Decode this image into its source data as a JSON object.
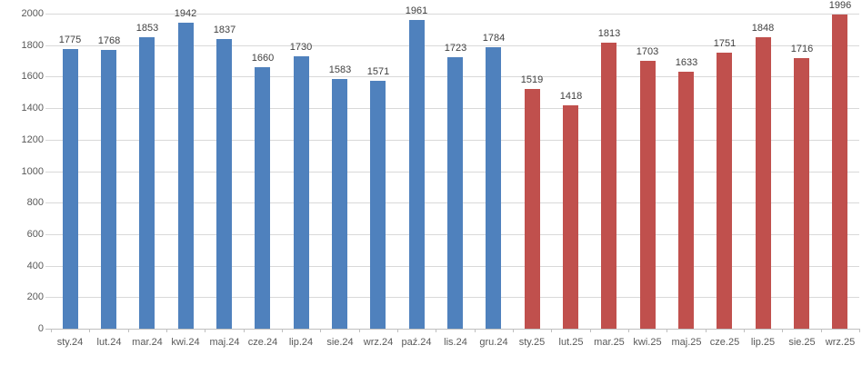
{
  "chart_data": {
    "type": "bar",
    "title": "",
    "categories": [
      "sty.24",
      "lut.24",
      "mar.24",
      "kwi.24",
      "maj.24",
      "cze.24",
      "lip.24",
      "sie.24",
      "wrz.24",
      "paź.24",
      "lis.24",
      "gru.24",
      "sty.25",
      "lut.25",
      "mar.25",
      "kwi.25",
      "maj.25",
      "cze.25",
      "lip.25",
      "sie.25",
      "wrz.25"
    ],
    "values": [
      1775,
      1768,
      1853,
      1942,
      1837,
      1660,
      1730,
      1583,
      1571,
      1961,
      1723,
      1784,
      1519,
      1418,
      1813,
      1703,
      1633,
      1751,
      1848,
      1716,
      1996
    ],
    "series": [
      {
        "name": "2024",
        "color": "#4F81BD",
        "category_suffix": ".24"
      },
      {
        "name": "2025",
        "color": "#C0504D",
        "category_suffix": ".25"
      }
    ],
    "xlabel": "",
    "ylabel": "",
    "ylim": [
      0,
      2000
    ],
    "yticks": [
      0,
      200,
      400,
      600,
      800,
      1000,
      1200,
      1400,
      1600,
      1800,
      2000
    ],
    "grid": "horizontal",
    "legend": "none",
    "data_labels": true,
    "colors": {
      "gridline": "#D9D9D9",
      "axis_line": "#BFBFBF",
      "axis_text": "#595959",
      "data_label_text": "#404040",
      "background": "#FFFFFF"
    }
  }
}
